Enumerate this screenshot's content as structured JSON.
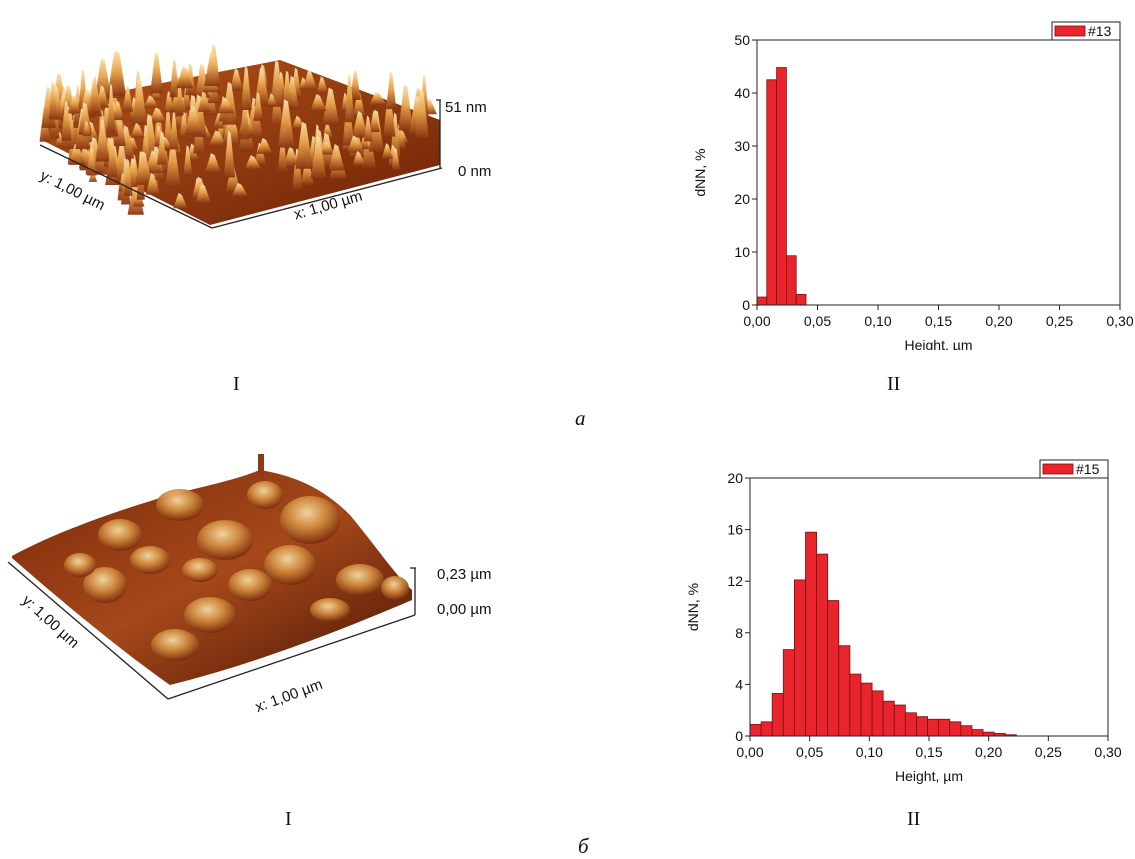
{
  "panels": [
    {
      "letter": "a",
      "afm": {
        "z_max_label": "51 nm",
        "z_min_label": "0 nm",
        "x_label": "x: 1,00 µm",
        "y_label": "y: 1,00 µm",
        "caption": "I"
      },
      "histogram_caption": "II"
    },
    {
      "letter": "б",
      "afm": {
        "z_max_label": "0,23 µm",
        "z_min_label": "0,00 µm",
        "x_label": "x: 1,00 µm",
        "y_label": "y: 1,00 µm",
        "caption": "I"
      },
      "histogram_caption": "II"
    }
  ],
  "colors": {
    "bar_fill": "#e8242c",
    "bar_stroke": "#7a1014",
    "afm_dark": "#5a1a08",
    "afm_mid": "#c0621c",
    "afm_light": "#f6d79a"
  },
  "chart_data": [
    {
      "type": "bar",
      "legend": "#13",
      "legend_position": "top-right",
      "xlabel": "Height, µm",
      "ylabel": "dNN, %",
      "xlim": [
        0,
        0.3
      ],
      "ylim": [
        0,
        50
      ],
      "xticks": [
        "0,00",
        "0,05",
        "0,10",
        "0,15",
        "0,20",
        "0,25",
        "0,30"
      ],
      "yticks": [
        "0",
        "10",
        "20",
        "30",
        "40",
        "50"
      ],
      "bin_width": 0.0081,
      "bins": [
        0.0,
        0.0081,
        0.0162,
        0.0243,
        0.0324
      ],
      "values": [
        1.5,
        42.5,
        44.8,
        9.3,
        2.0
      ]
    },
    {
      "type": "bar",
      "legend": "#15",
      "legend_position": "top-right",
      "xlabel": "Height, µm",
      "ylabel": "dNN, %",
      "xlim": [
        0,
        0.3
      ],
      "ylim": [
        0,
        20
      ],
      "xticks": [
        "0,00",
        "0,05",
        "0,10",
        "0,15",
        "0,20",
        "0,25",
        "0,30"
      ],
      "yticks": [
        "0",
        "4",
        "8",
        "12",
        "16",
        "20"
      ],
      "bin_width": 0.0093,
      "bins": [
        0.0,
        0.0093,
        0.0186,
        0.0279,
        0.0372,
        0.0465,
        0.0558,
        0.0651,
        0.0744,
        0.0837,
        0.093,
        0.1023,
        0.1116,
        0.1209,
        0.1302,
        0.1395,
        0.1488,
        0.1581,
        0.1674,
        0.1767,
        0.186,
        0.1953,
        0.2046,
        0.2139
      ],
      "values": [
        0.9,
        1.1,
        3.3,
        6.7,
        12.1,
        15.8,
        14.1,
        10.5,
        7.0,
        4.8,
        4.1,
        3.5,
        2.7,
        2.4,
        1.8,
        1.5,
        1.3,
        1.3,
        1.1,
        0.8,
        0.5,
        0.3,
        0.2,
        0.1
      ]
    }
  ]
}
